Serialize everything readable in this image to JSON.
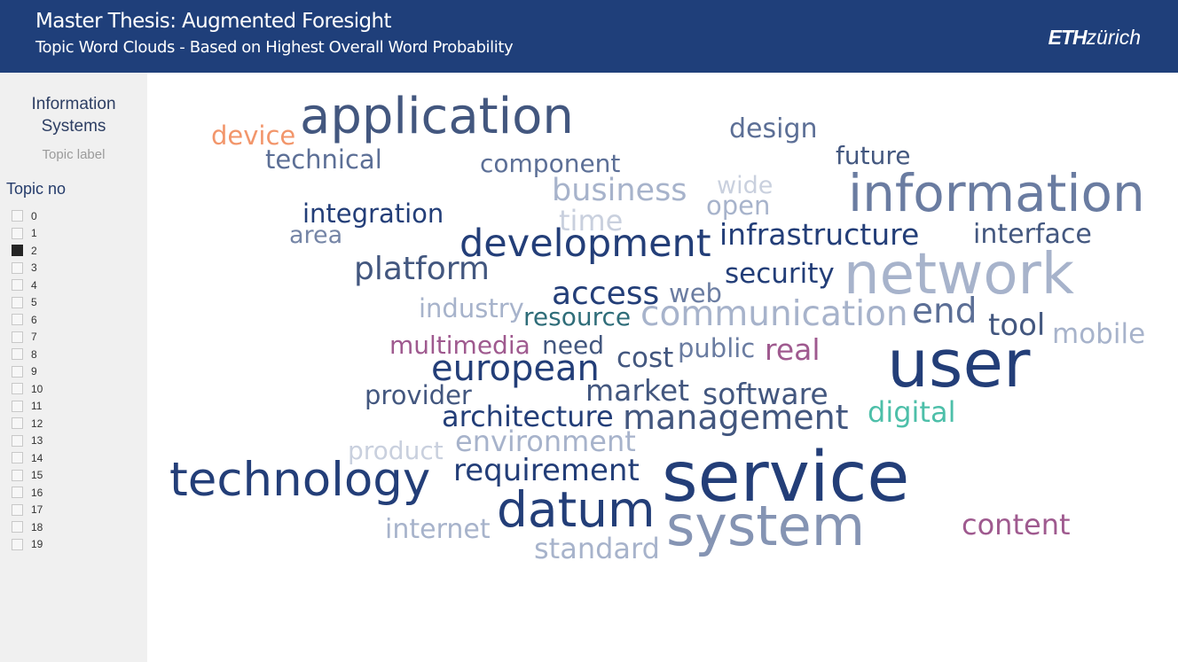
{
  "header": {
    "title": "Master Thesis: Augmented Foresight",
    "subtitle": "Topic Word Clouds - Based on Highest Overall Word Probability",
    "logo_bold": "ETH",
    "logo_light": "zürich"
  },
  "sidebar": {
    "topic_name": "Information Systems",
    "topic_label": "Topic label",
    "topic_no_label": "Topic no",
    "topics": [
      "0",
      "1",
      "2",
      "3",
      "4",
      "5",
      "6",
      "7",
      "8",
      "9",
      "10",
      "11",
      "12",
      "13",
      "14",
      "15",
      "16",
      "17",
      "18",
      "19"
    ],
    "selected": "2"
  },
  "colors": {
    "header_bg": "#1f3f7a",
    "navy": "#233e78",
    "slate": "#5c6f96",
    "lightslate": "#a7b3cb",
    "pale": "#c9d0de",
    "orange": "#f2966b",
    "purple": "#9f5a8f",
    "teal": "#2f6d79",
    "aqua": "#4dbfa9"
  },
  "cloud": {
    "words": [
      {
        "text": "application",
        "color": "#43577f"
      },
      {
        "text": "device",
        "color": "#f2966b"
      },
      {
        "text": "technical",
        "color": "#5c6f96"
      },
      {
        "text": "design",
        "color": "#5c6f96"
      },
      {
        "text": "future",
        "color": "#43577f"
      },
      {
        "text": "component",
        "color": "#5c6f96"
      },
      {
        "text": "business",
        "color": "#a7b3cb"
      },
      {
        "text": "wide",
        "color": "#c9d0de"
      },
      {
        "text": "open",
        "color": "#a7b3cb"
      },
      {
        "text": "time",
        "color": "#c9d0de"
      },
      {
        "text": "information",
        "color": "#6a7ca1"
      },
      {
        "text": "integration",
        "color": "#233e78"
      },
      {
        "text": "area",
        "color": "#7585a6"
      },
      {
        "text": "development",
        "color": "#233e78"
      },
      {
        "text": "infrastructure",
        "color": "#233e78"
      },
      {
        "text": "interface",
        "color": "#43577f"
      },
      {
        "text": "platform",
        "color": "#43577f"
      },
      {
        "text": "security",
        "color": "#233e78"
      },
      {
        "text": "network",
        "color": "#a7b3cb"
      },
      {
        "text": "access",
        "color": "#233e78"
      },
      {
        "text": "web",
        "color": "#6a7ca1"
      },
      {
        "text": "industry",
        "color": "#a7b3cb"
      },
      {
        "text": "resource",
        "color": "#2f6d79"
      },
      {
        "text": "communication",
        "color": "#a7b3cb"
      },
      {
        "text": "end",
        "color": "#5c6f96"
      },
      {
        "text": "tool",
        "color": "#43577f"
      },
      {
        "text": "mobile",
        "color": "#a7b3cb"
      },
      {
        "text": "multimedia",
        "color": "#9f5a8f"
      },
      {
        "text": "need",
        "color": "#43577f"
      },
      {
        "text": "public",
        "color": "#6a7ca1"
      },
      {
        "text": "real",
        "color": "#9f5a8f"
      },
      {
        "text": "user",
        "color": "#233e78"
      },
      {
        "text": "european",
        "color": "#233e78"
      },
      {
        "text": "cost",
        "color": "#43577f"
      },
      {
        "text": "provider",
        "color": "#43577f"
      },
      {
        "text": "market",
        "color": "#43577f"
      },
      {
        "text": "software",
        "color": "#43577f"
      },
      {
        "text": "architecture",
        "color": "#233e78"
      },
      {
        "text": "management",
        "color": "#43577f"
      },
      {
        "text": "digital",
        "color": "#4dbfa9"
      },
      {
        "text": "product",
        "color": "#c9d0de"
      },
      {
        "text": "environment",
        "color": "#a7b3cb"
      },
      {
        "text": "technology",
        "color": "#233e78"
      },
      {
        "text": "requirement",
        "color": "#233e78"
      },
      {
        "text": "service",
        "color": "#233e78"
      },
      {
        "text": "datum",
        "color": "#233e78"
      },
      {
        "text": "content",
        "color": "#9f5a8f"
      },
      {
        "text": "internet",
        "color": "#a7b3cb"
      },
      {
        "text": "system",
        "color": "#8594b3"
      },
      {
        "text": "standard",
        "color": "#a7b3cb"
      }
    ]
  }
}
